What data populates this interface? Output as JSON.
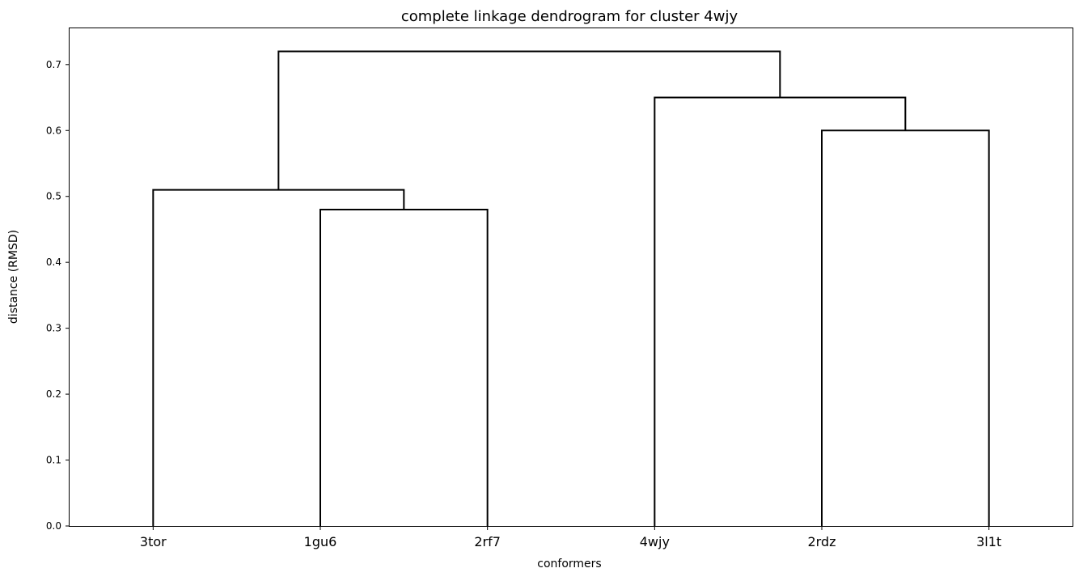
{
  "chart_data": {
    "type": "dendrogram",
    "title": "complete linkage dendrogram for cluster 4wjy",
    "xlabel": "conformers",
    "ylabel": "distance (RMSD)",
    "ylim": [
      0.0,
      0.755
    ],
    "yticks": [
      0.0,
      0.1,
      0.2,
      0.3,
      0.4,
      0.5,
      0.6,
      0.7
    ],
    "ytick_labels": [
      "0.0",
      "0.1",
      "0.2",
      "0.3",
      "0.4",
      "0.5",
      "0.6",
      "0.7"
    ],
    "leaves": [
      "3tor",
      "1gu6",
      "2rf7",
      "4wjy",
      "2rdz",
      "3l1t"
    ],
    "merges": [
      {
        "left": "1gu6",
        "right": "2rf7",
        "distance": 0.48
      },
      {
        "left": "3tor",
        "right": "1gu6+2rf7",
        "distance": 0.51
      },
      {
        "left": "2rdz",
        "right": "3l1t",
        "distance": 0.6
      },
      {
        "left": "4wjy",
        "right": "2rdz+3l1t",
        "distance": 0.65
      },
      {
        "left": "3tor+1gu6+2rf7",
        "right": "4wjy+2rdz+3l1t",
        "distance": 0.72
      }
    ],
    "link_color": "#000000",
    "grid": false
  }
}
